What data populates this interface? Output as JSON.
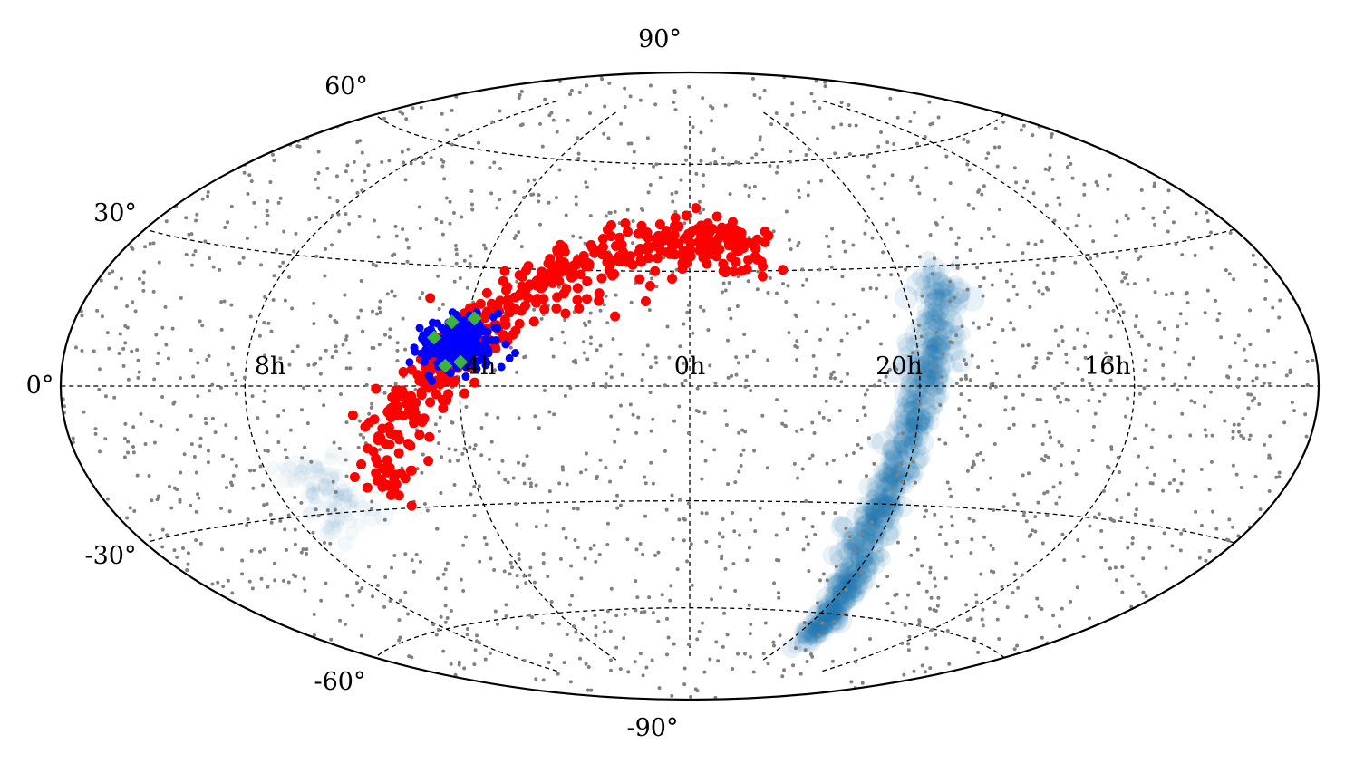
{
  "chart_data": {
    "type": "scatter",
    "projection": "hammer",
    "colors": {
      "background_points": "#808080",
      "red_points": "#ff0000",
      "blue_points": "#0000ff",
      "green_points": "#3cb43c",
      "stream": "#1f77b4",
      "grid": "#000000"
    },
    "lat_ticks": [
      "90°",
      "60°",
      "30°",
      "0°",
      "-30°",
      "-60°",
      "-90°"
    ],
    "ra_ticks": [
      "8h",
      "4h",
      "0h",
      "20h",
      "16h"
    ],
    "series": [
      {
        "marker": "gray-dot",
        "values": "approx. 2000 uniformly scattered sources across the full sky"
      },
      {
        "marker": "red-dot",
        "points_ra_dec_deg": [
          [
            60,
            10
          ],
          [
            62,
            6
          ],
          [
            58,
            14
          ],
          [
            55,
            18
          ],
          [
            65,
            5
          ],
          [
            50,
            22
          ],
          [
            45,
            26
          ],
          [
            40,
            28
          ],
          [
            35,
            30
          ],
          [
            30,
            32
          ],
          [
            25,
            34
          ],
          [
            20,
            35
          ],
          [
            15,
            36
          ],
          [
            10,
            37
          ],
          [
            5,
            38
          ],
          [
            0,
            40
          ],
          [
            -5,
            40
          ],
          [
            -10,
            40
          ],
          [
            -15,
            38
          ],
          [
            -20,
            36
          ],
          [
            70,
            2
          ],
          [
            75,
            -2
          ],
          [
            78,
            -6
          ],
          [
            80,
            -10
          ],
          [
            82,
            -14
          ],
          [
            70,
            -8
          ],
          [
            72,
            -12
          ],
          [
            68,
            -4
          ],
          [
            85,
            -20
          ],
          [
            83,
            -24
          ],
          [
            30,
            20
          ],
          [
            20,
            18
          ],
          [
            25,
            24
          ],
          [
            10,
            30
          ],
          [
            -5,
            32
          ],
          [
            -15,
            30
          ],
          [
            -8,
            34
          ],
          [
            0,
            35
          ],
          [
            5,
            28
          ],
          [
            12,
            22
          ]
        ]
      },
      {
        "marker": "blue-dot",
        "points_ra_dec_deg": [
          [
            63,
            9
          ],
          [
            60,
            10
          ],
          [
            62,
            12
          ],
          [
            58,
            11
          ],
          [
            65,
            8
          ],
          [
            61,
            7
          ],
          [
            59,
            13
          ],
          [
            64,
            11
          ],
          [
            62,
            9
          ],
          [
            60,
            8
          ],
          [
            57,
            10
          ],
          [
            66,
            10
          ]
        ]
      },
      {
        "marker": "green-diamond",
        "points_ra_dec_deg": [
          [
            68,
            12
          ],
          [
            64,
            16
          ],
          [
            58,
            17
          ],
          [
            64,
            5
          ],
          [
            60,
            6
          ]
        ]
      },
      {
        "marker": "stream-density",
        "values": "diffuse blue stellar stream running from about RA 19h, Dec +25° down to about RA 20h, Dec -60°, plus faint patch near RA 7h, Dec -25°"
      }
    ]
  }
}
